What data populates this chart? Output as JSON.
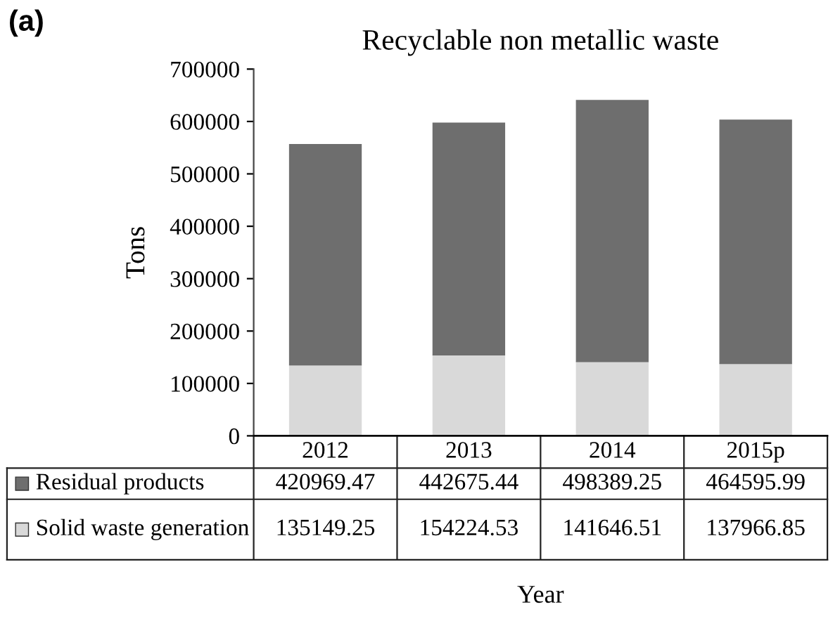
{
  "chart_data": {
    "type": "bar",
    "stacked": true,
    "title": "Recyclable non metallic waste",
    "ylabel": "Tons",
    "xlabel": "Year",
    "annotations": [
      "(a)"
    ],
    "categories": [
      "2012",
      "2013",
      "2014",
      "2015p"
    ],
    "series": [
      {
        "name": "Solid waste generation",
        "color": "#d9d9d9",
        "values": [
          135149.25,
          154224.53,
          141646.51,
          137966.85
        ]
      },
      {
        "name": "Residual products",
        "color": "#6e6e6e",
        "values": [
          420969.47,
          442675.44,
          498389.25,
          464595.99
        ]
      }
    ],
    "ylim": [
      0,
      700000
    ],
    "yticks": [
      0,
      100000,
      200000,
      300000,
      400000,
      500000,
      600000,
      700000
    ],
    "data_labels": true,
    "grid": false,
    "legend": "bottom left"
  }
}
